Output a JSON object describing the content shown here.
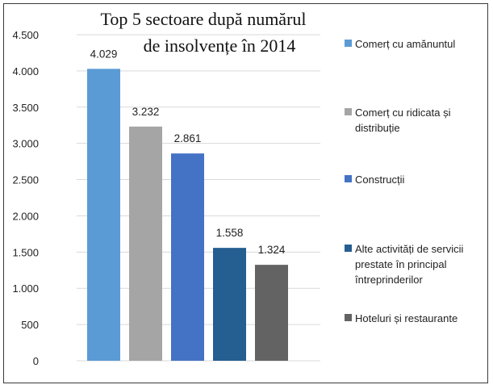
{
  "chart_data": {
    "type": "bar",
    "title_lines": [
      "Top 5 sectoare după numărul",
      "de insolvențe în 2014"
    ],
    "categories": [
      "Comerț cu amănuntul",
      "Comerț cu ridicata și distribuție",
      "Construcții",
      "Alte activități de servicii prestate în principal întreprinderilor",
      "Hoteluri și restaurante"
    ],
    "values": [
      4029,
      3232,
      2861,
      1558,
      1324
    ],
    "value_labels": [
      "4.029",
      "3.232",
      "2.861",
      "1.558",
      "1.324"
    ],
    "colors": [
      "#5b9bd5",
      "#a5a5a5",
      "#4472c4",
      "#255e91",
      "#636363"
    ],
    "ylim": [
      0,
      4500
    ],
    "yticks": [
      0,
      500,
      1000,
      1500,
      2000,
      2500,
      3000,
      3500,
      4000,
      4500
    ],
    "ytick_labels": [
      "0",
      "500",
      "1.000",
      "1.500",
      "2.000",
      "2.500",
      "3.000",
      "3.500",
      "4.000",
      "4.500"
    ],
    "grid": true,
    "legend_position": "right",
    "legend_entries": [
      {
        "lines": [
          "Comerț cu amănuntul"
        ],
        "color": "#5b9bd5"
      },
      {
        "lines": [
          "Comerț cu ridicata și",
          "distribuție"
        ],
        "color": "#a5a5a5"
      },
      {
        "lines": [
          "Construcții"
        ],
        "color": "#4472c4"
      },
      {
        "lines": [
          "Alte activități de servicii",
          "prestate în principal",
          "întreprinderilor"
        ],
        "color": "#255e91"
      },
      {
        "lines": [
          "Hoteluri și restaurante"
        ],
        "color": "#636363"
      }
    ]
  }
}
